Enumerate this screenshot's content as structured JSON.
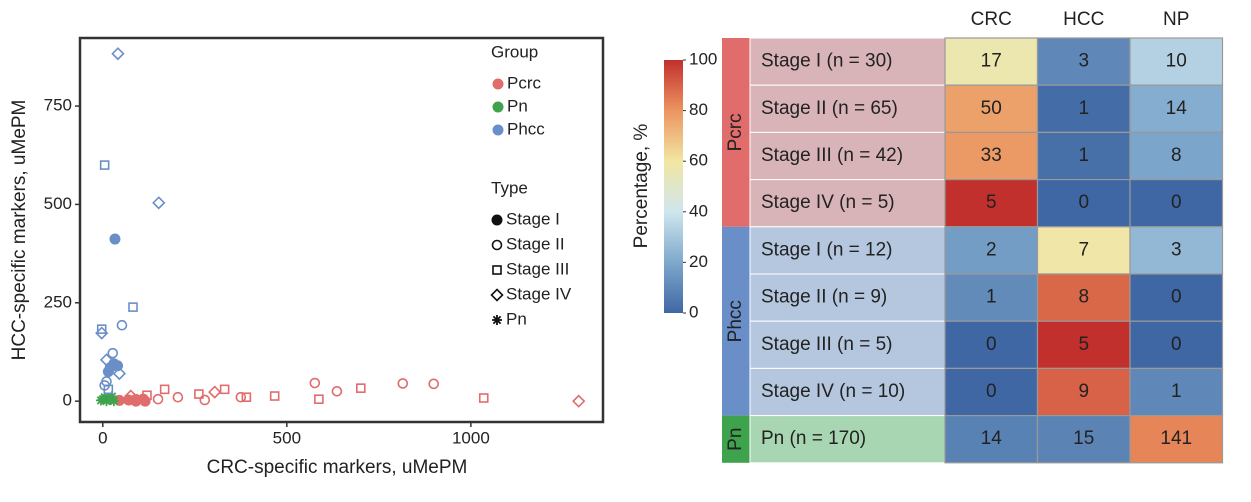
{
  "chart_data": [
    {
      "type": "scatter",
      "xlabel": "CRC-specific markers, uMePM",
      "ylabel": "HCC-specific markers, uMePM",
      "xlim": [
        -62,
        1359
      ],
      "ylim": [
        -53,
        923
      ],
      "xticks": [
        0,
        500,
        1000
      ],
      "yticks": [
        0,
        250,
        500,
        750
      ],
      "legend": {
        "group_title": "Group",
        "type_title": "Type",
        "types": [
          {
            "name": "Stage I",
            "marker": "filled-circle"
          },
          {
            "name": "Stage II",
            "marker": "open-circle"
          },
          {
            "name": "Stage III",
            "marker": "open-square"
          },
          {
            "name": "Stage IV",
            "marker": "open-diamond"
          },
          {
            "name": "Pn",
            "marker": "asterisk"
          }
        ]
      },
      "series": [
        {
          "name": "Pcrc",
          "color": "#e06c6c",
          "groups": [
            {
              "marker": "filled-circle",
              "x": [
                45,
                70,
                90,
                110,
                115
              ],
              "y": [
                2,
                3,
                0,
                5,
                0
              ]
            },
            {
              "marker": "open-circle",
              "x": [
                576,
                815,
                899,
                636,
                375,
                204,
                277,
                150,
                90
              ],
              "y": [
                46,
                45,
                44,
                25,
                10,
                10,
                3,
                5,
                5
              ]
            },
            {
              "marker": "open-square",
              "x": [
                1035,
                701,
                587,
                467,
                331,
                261,
                168,
                120,
                390
              ],
              "y": [
                8,
                33,
                5,
                13,
                30,
                18,
                30,
                15,
                10
              ]
            },
            {
              "marker": "open-diamond",
              "x": [
                1293,
                304,
                76
              ],
              "y": [
                0,
                23,
                13
              ]
            }
          ]
        },
        {
          "name": "Pn",
          "color": "#3fa34d",
          "groups": [
            {
              "marker": "asterisk",
              "x": [
                0,
                5,
                10,
                15,
                20,
                -5,
                25,
                30
              ],
              "y": [
                5,
                10,
                0,
                8,
                3,
                2,
                12,
                0
              ]
            }
          ]
        },
        {
          "name": "Phcc",
          "color": "#6a8fc8",
          "groups": [
            {
              "marker": "filled-circle",
              "x": [
                33,
                20,
                30,
                15,
                40
              ],
              "y": [
                412,
                85,
                95,
                75,
                90
              ]
            },
            {
              "marker": "open-circle",
              "x": [
                52,
                27,
                10,
                5
              ],
              "y": [
                193,
                122,
                50,
                40
              ]
            },
            {
              "marker": "open-square",
              "x": [
                5,
                82,
                -3,
                15
              ],
              "y": [
                600,
                239,
                183,
                30
              ]
            },
            {
              "marker": "open-diamond",
              "x": [
                41,
                152,
                -3,
                10,
                45
              ],
              "y": [
                883,
                504,
                173,
                105,
                70
              ]
            }
          ]
        }
      ]
    },
    {
      "type": "heatmap",
      "columns": [
        "CRC",
        "HCC",
        "NP"
      ],
      "colorbar_label": "Percentage, %",
      "clim": [
        0,
        100
      ],
      "cticks": [
        0,
        20,
        40,
        60,
        80,
        100
      ],
      "colormap": [
        [
          0,
          "#3f67a3"
        ],
        [
          20,
          "#7ea8cc"
        ],
        [
          40,
          "#cfe6ee"
        ],
        [
          60,
          "#f2e6a2"
        ],
        [
          80,
          "#ec9460"
        ],
        [
          100,
          "#c1302d"
        ]
      ],
      "groups": [
        {
          "name": "Pcrc",
          "color": "#e06c6c",
          "row_color": "#d8b4b9",
          "rows": [
            {
              "label": "Stage I (n = 30)",
              "n": 30,
              "values": [
                17,
                3,
                10
              ]
            },
            {
              "label": "Stage II (n = 65)",
              "n": 65,
              "values": [
                50,
                1,
                14
              ]
            },
            {
              "label": "Stage III (n = 42)",
              "n": 42,
              "values": [
                33,
                1,
                8
              ]
            },
            {
              "label": "Stage IV (n = 5)",
              "n": 5,
              "values": [
                5,
                0,
                0
              ]
            }
          ]
        },
        {
          "name": "Phcc",
          "color": "#6a8fc8",
          "row_color": "#b4c7df",
          "rows": [
            {
              "label": "Stage I (n = 12)",
              "n": 12,
              "values": [
                2,
                7,
                3
              ]
            },
            {
              "label": "Stage II (n = 9)",
              "n": 9,
              "values": [
                1,
                8,
                0
              ]
            },
            {
              "label": "Stage III (n = 5)",
              "n": 5,
              "values": [
                0,
                5,
                0
              ]
            },
            {
              "label": "Stage IV (n = 10)",
              "n": 10,
              "values": [
                0,
                9,
                1
              ]
            }
          ]
        },
        {
          "name": "Pn",
          "color": "#3fa34d",
          "row_color": "#a9d6b2",
          "rows": [
            {
              "label": "Pn (n = 170)",
              "n": 170,
              "values": [
                14,
                15,
                141
              ]
            }
          ]
        }
      ]
    }
  ]
}
